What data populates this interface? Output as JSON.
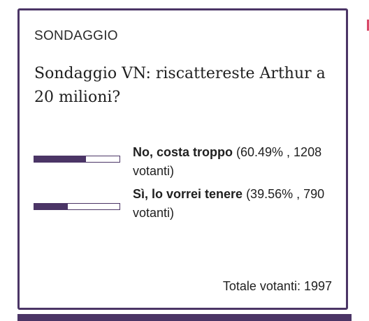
{
  "poll": {
    "label": "SONDAGGIO",
    "question": "Sondaggio VN: riscattereste Arthur a 20 milioni?",
    "options": [
      {
        "label": "No, costa troppo",
        "detail": " (60.49% , 1208 votanti)",
        "fraction": 0.6049
      },
      {
        "label": "Sì, lo vorrei tenere",
        "detail": " (39.56% , 790 votanti)",
        "fraction": 0.3956
      }
    ],
    "total": "Totale votanti: 1997"
  },
  "colors": {
    "accent": "#4b3566",
    "edge_mark": "#d84a6a"
  }
}
